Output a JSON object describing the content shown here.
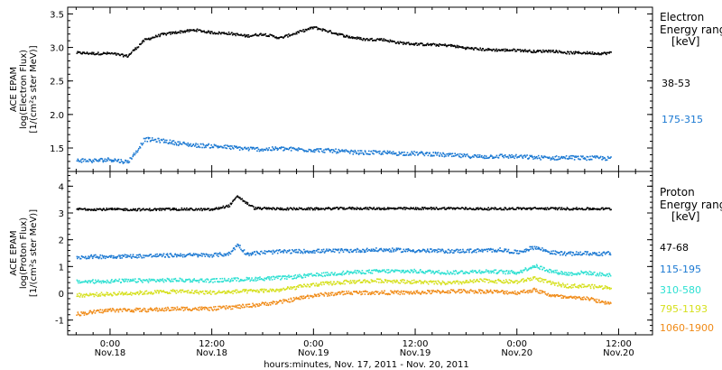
{
  "colors": {
    "black": "#000000",
    "blue": "#1a78d2",
    "cyan": "#2de0d2",
    "yellow": "#d6e01e",
    "orange": "#f08a16"
  },
  "chart_data": [
    {
      "type": "scatter",
      "panel": "electron",
      "ylabel": [
        "ACE EPAM",
        "log(Electron Flux)",
        "[1/(cm²s ster MeV)]"
      ],
      "legend_title": [
        "Electron",
        "Energy ranges",
        "[keV]"
      ],
      "ylim": [
        1.15,
        3.6
      ],
      "yticks": [
        1.5,
        2.0,
        2.5,
        3.0,
        3.5
      ],
      "ytick_labels": [
        "1.5",
        "2.0",
        "2.5",
        "3.0",
        "3.5"
      ],
      "series": [
        {
          "name": "38-53",
          "color": "black",
          "x": [
            -4,
            -2,
            0,
            2,
            3,
            4,
            6,
            8,
            10,
            12,
            14,
            15,
            16,
            18,
            20,
            22,
            24,
            26,
            28,
            30,
            32,
            34,
            36,
            38,
            40,
            42,
            44,
            46,
            48,
            50,
            52,
            54,
            56,
            58,
            59
          ],
          "y": [
            2.93,
            2.92,
            2.92,
            2.88,
            3.0,
            3.12,
            3.2,
            3.24,
            3.27,
            3.23,
            3.22,
            3.2,
            3.18,
            3.21,
            3.15,
            3.23,
            3.31,
            3.24,
            3.17,
            3.13,
            3.13,
            3.08,
            3.06,
            3.05,
            3.04,
            3.0,
            2.98,
            2.97,
            2.97,
            2.95,
            2.96,
            2.93,
            2.93,
            2.92,
            2.93
          ]
        },
        {
          "name": "175-315",
          "color": "blue",
          "x": [
            -4,
            -2,
            0,
            2,
            3,
            4,
            6,
            8,
            10,
            12,
            14,
            16,
            18,
            20,
            22,
            24,
            26,
            28,
            30,
            32,
            34,
            36,
            38,
            40,
            42,
            44,
            46,
            48,
            50,
            52,
            54,
            56,
            58,
            59
          ],
          "y": [
            1.33,
            1.32,
            1.34,
            1.3,
            1.45,
            1.64,
            1.62,
            1.58,
            1.55,
            1.54,
            1.52,
            1.5,
            1.49,
            1.5,
            1.49,
            1.48,
            1.47,
            1.45,
            1.44,
            1.44,
            1.43,
            1.43,
            1.42,
            1.4,
            1.39,
            1.38,
            1.39,
            1.38,
            1.37,
            1.36,
            1.37,
            1.36,
            1.36,
            1.35
          ]
        }
      ]
    },
    {
      "type": "scatter",
      "panel": "proton",
      "xlabel": "hours:minutes, Nov. 17, 2011 - Nov. 20, 2011",
      "ylabel": [
        "ACE EPAM",
        "log(Proton Flux)",
        "[1/(cm²s ster MeV)]"
      ],
      "legend_title": [
        "Proton",
        "Energy ranges",
        "[keV]"
      ],
      "ylim": [
        -1.55,
        4.55
      ],
      "yticks": [
        -1,
        0,
        1,
        2,
        3,
        4
      ],
      "ytick_labels": [
        "-1",
        "0",
        "1",
        "2",
        "3",
        "4"
      ],
      "xlim": [
        -5,
        64
      ],
      "xticks": [
        0,
        12,
        24,
        36,
        48,
        60
      ],
      "xtick_labels": [
        [
          "0:00",
          "Nov.18"
        ],
        [
          "12:00",
          "Nov.18"
        ],
        [
          "0:00",
          "Nov.19"
        ],
        [
          "12:00",
          "Nov.19"
        ],
        [
          "0:00",
          "Nov.20"
        ],
        [
          "12:00",
          "Nov.20"
        ]
      ],
      "series": [
        {
          "name": "47-68",
          "color": "black",
          "x": [
            -4,
            0,
            4,
            8,
            12,
            14,
            15,
            16,
            17,
            20,
            24,
            28,
            32,
            36,
            40,
            44,
            48,
            52,
            56,
            59
          ],
          "y": [
            3.17,
            3.16,
            3.15,
            3.17,
            3.15,
            3.3,
            3.65,
            3.4,
            3.2,
            3.18,
            3.18,
            3.2,
            3.19,
            3.19,
            3.2,
            3.18,
            3.19,
            3.19,
            3.18,
            3.18
          ]
        },
        {
          "name": "115-195",
          "color": "blue",
          "x": [
            -4,
            0,
            4,
            8,
            12,
            14,
            15,
            16,
            18,
            20,
            24,
            28,
            32,
            36,
            40,
            44,
            46,
            48,
            50,
            52,
            54,
            56,
            58,
            59
          ],
          "y": [
            1.38,
            1.4,
            1.42,
            1.45,
            1.45,
            1.5,
            1.85,
            1.5,
            1.55,
            1.58,
            1.6,
            1.62,
            1.65,
            1.62,
            1.6,
            1.62,
            1.65,
            1.55,
            1.75,
            1.55,
            1.5,
            1.52,
            1.5,
            1.52
          ]
        },
        {
          "name": "310-580",
          "color": "cyan",
          "x": [
            -4,
            0,
            4,
            8,
            12,
            16,
            20,
            24,
            28,
            32,
            36,
            40,
            44,
            48,
            50,
            52,
            54,
            56,
            58,
            59
          ],
          "y": [
            0.45,
            0.48,
            0.5,
            0.52,
            0.5,
            0.55,
            0.6,
            0.7,
            0.8,
            0.85,
            0.85,
            0.8,
            0.85,
            0.8,
            1.05,
            0.85,
            0.75,
            0.8,
            0.72,
            0.72
          ]
        },
        {
          "name": "795-1193",
          "color": "yellow",
          "x": [
            -4,
            0,
            4,
            8,
            12,
            16,
            20,
            24,
            28,
            32,
            36,
            40,
            44,
            48,
            50,
            52,
            54,
            56,
            58,
            59
          ],
          "y": [
            -0.05,
            0.0,
            0.05,
            0.1,
            0.05,
            0.1,
            0.15,
            0.35,
            0.45,
            0.5,
            0.45,
            0.4,
            0.5,
            0.45,
            0.6,
            0.4,
            0.3,
            0.3,
            0.25,
            0.25
          ]
        },
        {
          "name": "1060-1900",
          "color": "orange",
          "x": [
            -4,
            0,
            4,
            8,
            12,
            16,
            20,
            24,
            28,
            32,
            36,
            40,
            44,
            48,
            50,
            52,
            54,
            56,
            58,
            59
          ],
          "y": [
            -0.75,
            -0.6,
            -0.6,
            -0.55,
            -0.55,
            -0.45,
            -0.3,
            -0.05,
            0.05,
            0.05,
            0.05,
            0.1,
            0.1,
            0.05,
            0.15,
            -0.05,
            -0.15,
            -0.15,
            -0.3,
            -0.35
          ]
        }
      ]
    }
  ]
}
